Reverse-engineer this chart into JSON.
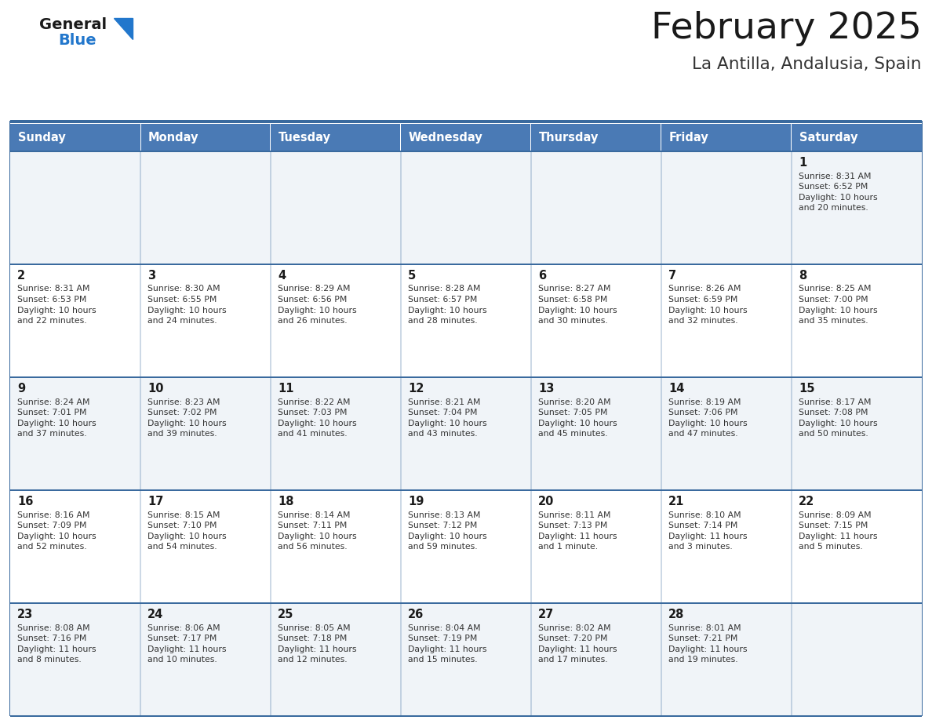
{
  "title": "February 2025",
  "subtitle": "La Antilla, Andalusia, Spain",
  "header_bg": "#4a7ab5",
  "header_text": "#ffffff",
  "row_bg_odd": "#f0f4f8",
  "row_bg_even": "#ffffff",
  "border_color": "#3a6a9e",
  "day_headers": [
    "Sunday",
    "Monday",
    "Tuesday",
    "Wednesday",
    "Thursday",
    "Friday",
    "Saturday"
  ],
  "title_color": "#1a1a1a",
  "subtitle_color": "#333333",
  "day_num_color": "#1a1a1a",
  "cell_text_color": "#333333",
  "logo_general_color": "#1a1a1a",
  "logo_blue_color": "#2277cc",
  "logo_triangle_color": "#2277cc",
  "weeks": [
    [
      {
        "day": null,
        "info": null
      },
      {
        "day": null,
        "info": null
      },
      {
        "day": null,
        "info": null
      },
      {
        "day": null,
        "info": null
      },
      {
        "day": null,
        "info": null
      },
      {
        "day": null,
        "info": null
      },
      {
        "day": 1,
        "info": "Sunrise: 8:31 AM\nSunset: 6:52 PM\nDaylight: 10 hours\nand 20 minutes."
      }
    ],
    [
      {
        "day": 2,
        "info": "Sunrise: 8:31 AM\nSunset: 6:53 PM\nDaylight: 10 hours\nand 22 minutes."
      },
      {
        "day": 3,
        "info": "Sunrise: 8:30 AM\nSunset: 6:55 PM\nDaylight: 10 hours\nand 24 minutes."
      },
      {
        "day": 4,
        "info": "Sunrise: 8:29 AM\nSunset: 6:56 PM\nDaylight: 10 hours\nand 26 minutes."
      },
      {
        "day": 5,
        "info": "Sunrise: 8:28 AM\nSunset: 6:57 PM\nDaylight: 10 hours\nand 28 minutes."
      },
      {
        "day": 6,
        "info": "Sunrise: 8:27 AM\nSunset: 6:58 PM\nDaylight: 10 hours\nand 30 minutes."
      },
      {
        "day": 7,
        "info": "Sunrise: 8:26 AM\nSunset: 6:59 PM\nDaylight: 10 hours\nand 32 minutes."
      },
      {
        "day": 8,
        "info": "Sunrise: 8:25 AM\nSunset: 7:00 PM\nDaylight: 10 hours\nand 35 minutes."
      }
    ],
    [
      {
        "day": 9,
        "info": "Sunrise: 8:24 AM\nSunset: 7:01 PM\nDaylight: 10 hours\nand 37 minutes."
      },
      {
        "day": 10,
        "info": "Sunrise: 8:23 AM\nSunset: 7:02 PM\nDaylight: 10 hours\nand 39 minutes."
      },
      {
        "day": 11,
        "info": "Sunrise: 8:22 AM\nSunset: 7:03 PM\nDaylight: 10 hours\nand 41 minutes."
      },
      {
        "day": 12,
        "info": "Sunrise: 8:21 AM\nSunset: 7:04 PM\nDaylight: 10 hours\nand 43 minutes."
      },
      {
        "day": 13,
        "info": "Sunrise: 8:20 AM\nSunset: 7:05 PM\nDaylight: 10 hours\nand 45 minutes."
      },
      {
        "day": 14,
        "info": "Sunrise: 8:19 AM\nSunset: 7:06 PM\nDaylight: 10 hours\nand 47 minutes."
      },
      {
        "day": 15,
        "info": "Sunrise: 8:17 AM\nSunset: 7:08 PM\nDaylight: 10 hours\nand 50 minutes."
      }
    ],
    [
      {
        "day": 16,
        "info": "Sunrise: 8:16 AM\nSunset: 7:09 PM\nDaylight: 10 hours\nand 52 minutes."
      },
      {
        "day": 17,
        "info": "Sunrise: 8:15 AM\nSunset: 7:10 PM\nDaylight: 10 hours\nand 54 minutes."
      },
      {
        "day": 18,
        "info": "Sunrise: 8:14 AM\nSunset: 7:11 PM\nDaylight: 10 hours\nand 56 minutes."
      },
      {
        "day": 19,
        "info": "Sunrise: 8:13 AM\nSunset: 7:12 PM\nDaylight: 10 hours\nand 59 minutes."
      },
      {
        "day": 20,
        "info": "Sunrise: 8:11 AM\nSunset: 7:13 PM\nDaylight: 11 hours\nand 1 minute."
      },
      {
        "day": 21,
        "info": "Sunrise: 8:10 AM\nSunset: 7:14 PM\nDaylight: 11 hours\nand 3 minutes."
      },
      {
        "day": 22,
        "info": "Sunrise: 8:09 AM\nSunset: 7:15 PM\nDaylight: 11 hours\nand 5 minutes."
      }
    ],
    [
      {
        "day": 23,
        "info": "Sunrise: 8:08 AM\nSunset: 7:16 PM\nDaylight: 11 hours\nand 8 minutes."
      },
      {
        "day": 24,
        "info": "Sunrise: 8:06 AM\nSunset: 7:17 PM\nDaylight: 11 hours\nand 10 minutes."
      },
      {
        "day": 25,
        "info": "Sunrise: 8:05 AM\nSunset: 7:18 PM\nDaylight: 11 hours\nand 12 minutes."
      },
      {
        "day": 26,
        "info": "Sunrise: 8:04 AM\nSunset: 7:19 PM\nDaylight: 11 hours\nand 15 minutes."
      },
      {
        "day": 27,
        "info": "Sunrise: 8:02 AM\nSunset: 7:20 PM\nDaylight: 11 hours\nand 17 minutes."
      },
      {
        "day": 28,
        "info": "Sunrise: 8:01 AM\nSunset: 7:21 PM\nDaylight: 11 hours\nand 19 minutes."
      },
      {
        "day": null,
        "info": null
      }
    ]
  ]
}
